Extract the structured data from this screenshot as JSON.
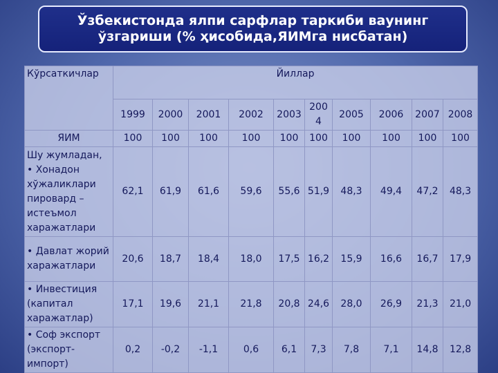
{
  "header": {
    "title": "Ўзбекистонда ялпи сарфлар таркиби ваунинг ўзгариши (% ҳисобида,ЯИМга нисбатан)"
  },
  "table": {
    "corner": "Кўрсаткичлар",
    "group": "Йиллар",
    "years": [
      "1999",
      "2000",
      "2001",
      "2002",
      "2003",
      "2004",
      "2005",
      "2006",
      "2007",
      "2008"
    ],
    "rows": [
      {
        "label": "ЯИМ",
        "values": [
          "100",
          "100",
          "100",
          "100",
          "100",
          "100",
          "100",
          "100",
          "100",
          "100"
        ]
      },
      {
        "label": "Шу жумладан, • Хонадон хўжаликлари пировард – истеъмол харажатлари",
        "values": [
          "62,1",
          "61,9",
          "61,6",
          "59,6",
          "55,6",
          "51,9",
          "48,3",
          "49,4",
          "47,2",
          "48,3"
        ]
      },
      {
        "label": "• Давлат жорий харажатлари",
        "values": [
          "20,6",
          "18,7",
          "18,4",
          "18,0",
          "17,5",
          "16,2",
          "15,9",
          "16,6",
          "16,7",
          "17,9"
        ]
      },
      {
        "label": "• Инвестиция (капитал харажатлар)",
        "values": [
          "17,1",
          "19,6",
          "21,1",
          "21,8",
          "20,8",
          "24,6",
          "28,0",
          "26,9",
          "21,3",
          "21,0"
        ]
      },
      {
        "label": "• Соф экспорт (экспорт-импорт)",
        "values": [
          "0,2",
          "-0,2",
          "-1,1",
          "0,6",
          "6,1",
          "7,3",
          "7,8",
          "7,1",
          "14,8",
          "12,8"
        ]
      }
    ]
  }
}
